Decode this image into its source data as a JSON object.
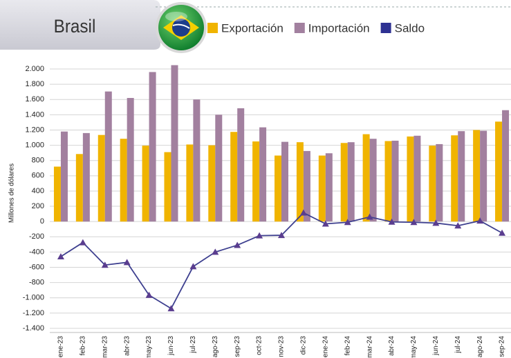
{
  "chart_data": {
    "type": "bar-line",
    "title": "Brasil",
    "y_axis_label": "Millones de dólares",
    "categories": [
      "ene-23",
      "feb-23",
      "mar-23",
      "abr-23",
      "may-23",
      "jun-23",
      "jul-23",
      "ago-23",
      "sep-23",
      "oct-23",
      "nov-23",
      "dic-23",
      "ene-24",
      "feb-24",
      "mar-24",
      "abr-24",
      "may-24",
      "jun-24",
      "jul-24",
      "ago-24",
      "sep-24"
    ],
    "series": [
      {
        "name": "Exportación",
        "type": "bar",
        "color": "#f0b400",
        "values": [
          720,
          885,
          1135,
          1085,
          995,
          910,
          1010,
          1000,
          1175,
          1050,
          865,
          1040,
          865,
          1030,
          1145,
          1055,
          1115,
          995,
          1130,
          1200,
          1310
        ]
      },
      {
        "name": "Importación",
        "type": "bar",
        "color": "#a2809f",
        "values": [
          1180,
          1160,
          1705,
          1620,
          1960,
          2050,
          1600,
          1400,
          1485,
          1235,
          1045,
          925,
          895,
          1040,
          1085,
          1060,
          1125,
          1015,
          1185,
          1190,
          1460
        ]
      },
      {
        "name": "Saldo",
        "type": "line",
        "color": "#2e3192",
        "values": [
          -460,
          -275,
          -570,
          -535,
          -965,
          -1140,
          -590,
          -400,
          -310,
          -185,
          -180,
          115,
          -30,
          -10,
          60,
          -5,
          -10,
          -20,
          -55,
          10,
          -150
        ]
      }
    ],
    "ylim": [
      -1400,
      2000
    ],
    "yticks": [
      {
        "value": -1400,
        "label": "-1.400"
      },
      {
        "value": -1200,
        "label": "-1.200"
      },
      {
        "value": -1000,
        "label": "-1.000"
      },
      -800,
      -600,
      -400,
      -200,
      0,
      200,
      400,
      600,
      800,
      {
        "value": 1000,
        "label": "1.000"
      },
      {
        "value": 1200,
        "label": "1.200"
      },
      {
        "value": 1400,
        "label": "1.400"
      },
      {
        "value": 1600,
        "label": "1.600"
      },
      {
        "value": 1800,
        "label": "1.800"
      },
      {
        "value": 2000,
        "label": "2.000"
      }
    ],
    "grid": true
  }
}
